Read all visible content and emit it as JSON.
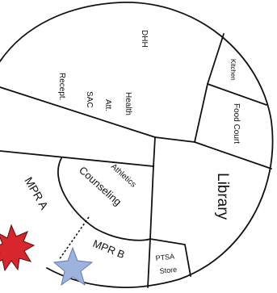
{
  "rooms": {
    "dhh": "DHH",
    "kitchen": "Kitchen",
    "food_court": "Food Court",
    "library": "Library",
    "recept": "Recept.",
    "sac": "SAC",
    "att": "Att.",
    "health": "Health",
    "athletics": "Athletics",
    "counseling": "Counseling",
    "mpr_a": "MPR A",
    "mpr_b": "MPR B",
    "ptsa": "PTSA",
    "store": "Store"
  },
  "markers": [
    {
      "icon": "star-icon",
      "color": "#9db3dd"
    },
    {
      "icon": "burst-icon",
      "color": "#d8262d"
    }
  ],
  "colors": {
    "line": "#111111",
    "background": "#ffffff"
  }
}
